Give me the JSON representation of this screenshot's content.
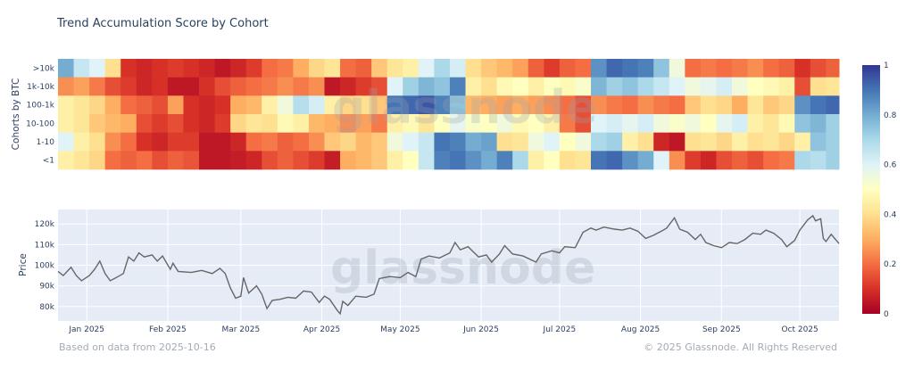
{
  "chart_data": [
    {
      "type": "heatmap",
      "title": "Trend Accumulation Score by Cohort",
      "ylabel": "Cohorts by BTC",
      "rows": [
        ">10k",
        "1k-10k",
        "100-1k",
        "10-100",
        "1-10",
        "<1"
      ],
      "x_range": [
        "2024-12-21",
        "2025-10-16"
      ],
      "bin_days": 6,
      "x": [
        "2024-12-21",
        "2024-12-27",
        "2025-01-02",
        "2025-01-08",
        "2025-01-14",
        "2025-01-20",
        "2025-01-26",
        "2025-02-01",
        "2025-02-07",
        "2025-02-13",
        "2025-02-19",
        "2025-02-25",
        "2025-03-03",
        "2025-03-09",
        "2025-03-15",
        "2025-03-21",
        "2025-03-27",
        "2025-04-02",
        "2025-04-08",
        "2025-04-14",
        "2025-04-20",
        "2025-04-26",
        "2025-05-02",
        "2025-05-08",
        "2025-05-14",
        "2025-05-20",
        "2025-05-26",
        "2025-06-01",
        "2025-06-07",
        "2025-06-13",
        "2025-06-19",
        "2025-06-25",
        "2025-07-01",
        "2025-07-07",
        "2025-07-13",
        "2025-07-19",
        "2025-07-25",
        "2025-07-31",
        "2025-08-06",
        "2025-08-12",
        "2025-08-18",
        "2025-08-24",
        "2025-08-30",
        "2025-09-05",
        "2025-09-11",
        "2025-09-17",
        "2025-09-23",
        "2025-09-29",
        "2025-10-05",
        "2025-10-11"
      ],
      "values": [
        [
          0.8,
          0.65,
          0.6,
          0.4,
          0.1,
          0.08,
          0.1,
          0.12,
          0.1,
          0.08,
          0.05,
          0.08,
          0.12,
          0.2,
          0.22,
          0.3,
          0.38,
          0.42,
          0.2,
          0.18,
          0.35,
          0.42,
          0.45,
          0.6,
          0.7,
          0.62,
          0.4,
          0.35,
          0.32,
          0.28,
          0.18,
          0.12,
          0.18,
          0.2,
          0.85,
          0.92,
          0.9,
          0.88,
          0.75,
          0.55,
          0.2,
          0.22,
          0.2,
          0.22,
          0.25,
          0.2,
          0.18,
          0.1,
          0.15,
          0.18
        ],
        [
          0.25,
          0.28,
          0.22,
          0.15,
          0.12,
          0.08,
          0.1,
          0.05,
          0.05,
          0.1,
          0.15,
          0.18,
          0.2,
          0.22,
          0.25,
          0.22,
          0.25,
          0.05,
          0.08,
          0.12,
          0.15,
          0.6,
          0.72,
          0.78,
          0.75,
          0.88,
          0.45,
          0.4,
          0.48,
          0.5,
          0.45,
          0.5,
          0.48,
          0.52,
          0.78,
          0.72,
          0.75,
          0.7,
          0.65,
          0.6,
          0.55,
          0.58,
          0.62,
          0.55,
          0.5,
          0.48,
          0.45,
          0.15,
          0.4,
          0.42
        ],
        [
          0.45,
          0.42,
          0.38,
          0.3,
          0.2,
          0.18,
          0.15,
          0.28,
          0.1,
          0.08,
          0.1,
          0.3,
          0.32,
          0.45,
          0.55,
          0.68,
          0.62,
          0.45,
          0.38,
          0.4,
          0.35,
          0.9,
          0.92,
          0.95,
          0.88,
          0.75,
          0.32,
          0.3,
          0.28,
          0.3,
          0.28,
          0.25,
          0.2,
          0.15,
          0.25,
          0.22,
          0.2,
          0.25,
          0.22,
          0.2,
          0.35,
          0.4,
          0.38,
          0.3,
          0.42,
          0.35,
          0.38,
          0.85,
          0.9,
          0.92
        ],
        [
          0.45,
          0.42,
          0.35,
          0.32,
          0.3,
          0.15,
          0.12,
          0.15,
          0.1,
          0.08,
          0.12,
          0.38,
          0.42,
          0.4,
          0.48,
          0.45,
          0.32,
          0.3,
          0.25,
          0.28,
          0.22,
          0.45,
          0.48,
          0.42,
          0.5,
          0.58,
          0.52,
          0.5,
          0.55,
          0.48,
          0.5,
          0.45,
          0.22,
          0.15,
          0.6,
          0.62,
          0.58,
          0.62,
          0.55,
          0.52,
          0.55,
          0.5,
          0.58,
          0.62,
          0.45,
          0.42,
          0.48,
          0.75,
          0.78,
          0.72
        ],
        [
          0.6,
          0.45,
          0.4,
          0.25,
          0.2,
          0.1,
          0.08,
          0.12,
          0.12,
          0.05,
          0.05,
          0.08,
          0.2,
          0.22,
          0.18,
          0.2,
          0.25,
          0.35,
          0.38,
          0.32,
          0.35,
          0.55,
          0.6,
          0.65,
          0.9,
          0.88,
          0.8,
          0.82,
          0.4,
          0.42,
          0.55,
          0.6,
          0.5,
          0.55,
          0.7,
          0.72,
          0.45,
          0.4,
          0.08,
          0.05,
          0.4,
          0.42,
          0.38,
          0.45,
          0.4,
          0.42,
          0.38,
          0.45,
          0.75,
          0.72
        ],
        [
          0.45,
          0.42,
          0.38,
          0.2,
          0.18,
          0.2,
          0.15,
          0.18,
          0.16,
          0.05,
          0.05,
          0.06,
          0.08,
          0.15,
          0.18,
          0.15,
          0.12,
          0.06,
          0.3,
          0.32,
          0.35,
          0.45,
          0.5,
          0.65,
          0.88,
          0.9,
          0.85,
          0.8,
          0.88,
          0.7,
          0.45,
          0.5,
          0.4,
          0.42,
          0.9,
          0.92,
          0.85,
          0.8,
          0.6,
          0.25,
          0.12,
          0.08,
          0.15,
          0.18,
          0.15,
          0.2,
          0.22,
          0.7,
          0.68,
          0.72
        ]
      ],
      "colorscale": [
        "#a50026",
        "#d73027",
        "#f46d43",
        "#fdae61",
        "#fee090",
        "#ffffbf",
        "#e0f3f8",
        "#abd9e9",
        "#74add1",
        "#4575b4",
        "#313695"
      ],
      "zlim": [
        0,
        1
      ],
      "colorbar_ticks": [
        "0",
        "0.2",
        "0.4",
        "0.6",
        "0.8",
        "1"
      ]
    },
    {
      "type": "line",
      "ylabel": "Price",
      "ylim": [
        73000,
        127000
      ],
      "y_ticks": [
        {
          "v": 80000,
          "label": "80k"
        },
        {
          "v": 90000,
          "label": "90k"
        },
        {
          "v": 100000,
          "label": "100k"
        },
        {
          "v": 110000,
          "label": "110k"
        },
        {
          "v": 120000,
          "label": "120k"
        }
      ],
      "x_ticks": [
        {
          "date": "2025-01-01",
          "label": "Jan 2025"
        },
        {
          "date": "2025-02-01",
          "label": "Feb 2025"
        },
        {
          "date": "2025-03-01",
          "label": "Mar 2025"
        },
        {
          "date": "2025-04-01",
          "label": "Apr 2025"
        },
        {
          "date": "2025-05-01",
          "label": "May 2025"
        },
        {
          "date": "2025-06-01",
          "label": "Jun 2025"
        },
        {
          "date": "2025-07-01",
          "label": "Jul 2025"
        },
        {
          "date": "2025-08-01",
          "label": "Aug 2025"
        },
        {
          "date": "2025-09-01",
          "label": "Sep 2025"
        },
        {
          "date": "2025-10-01",
          "label": "Oct 2025"
        }
      ],
      "grid": true,
      "line_color": "#666666",
      "points": [
        [
          "2024-12-21",
          97000
        ],
        [
          "2024-12-23",
          95000
        ],
        [
          "2024-12-26",
          99000
        ],
        [
          "2024-12-28",
          95000
        ],
        [
          "2024-12-30",
          92500
        ],
        [
          "2025-01-02",
          95000
        ],
        [
          "2025-01-04",
          98000
        ],
        [
          "2025-01-06",
          102000
        ],
        [
          "2025-01-08",
          96000
        ],
        [
          "2025-01-10",
          92500
        ],
        [
          "2025-01-13",
          94500
        ],
        [
          "2025-01-15",
          96000
        ],
        [
          "2025-01-17",
          104000
        ],
        [
          "2025-01-19",
          102000
        ],
        [
          "2025-01-21",
          106000
        ],
        [
          "2025-01-23",
          104000
        ],
        [
          "2025-01-26",
          105000
        ],
        [
          "2025-01-28",
          102000
        ],
        [
          "2025-01-30",
          104500
        ],
        [
          "2025-02-02",
          98000
        ],
        [
          "2025-02-03",
          101000
        ],
        [
          "2025-02-05",
          97000
        ],
        [
          "2025-02-10",
          96500
        ],
        [
          "2025-02-14",
          97500
        ],
        [
          "2025-02-18",
          96000
        ],
        [
          "2025-02-21",
          98500
        ],
        [
          "2025-02-23",
          96000
        ],
        [
          "2025-02-25",
          89000
        ],
        [
          "2025-02-27",
          84000
        ],
        [
          "2025-03-01",
          85000
        ],
        [
          "2025-03-02",
          94000
        ],
        [
          "2025-03-04",
          86500
        ],
        [
          "2025-03-07",
          90000
        ],
        [
          "2025-03-09",
          86000
        ],
        [
          "2025-03-11",
          79000
        ],
        [
          "2025-03-13",
          83000
        ],
        [
          "2025-03-16",
          83500
        ],
        [
          "2025-03-19",
          84500
        ],
        [
          "2025-03-22",
          84000
        ],
        [
          "2025-03-25",
          87500
        ],
        [
          "2025-03-28",
          87000
        ],
        [
          "2025-03-31",
          82000
        ],
        [
          "2025-04-02",
          85000
        ],
        [
          "2025-04-04",
          83500
        ],
        [
          "2025-04-07",
          78000
        ],
        [
          "2025-04-08",
          76500
        ],
        [
          "2025-04-09",
          82500
        ],
        [
          "2025-04-11",
          80500
        ],
        [
          "2025-04-14",
          85000
        ],
        [
          "2025-04-18",
          84500
        ],
        [
          "2025-04-21",
          86000
        ],
        [
          "2025-04-23",
          93500
        ],
        [
          "2025-04-27",
          94500
        ],
        [
          "2025-05-01",
          94000
        ],
        [
          "2025-05-04",
          96500
        ],
        [
          "2025-05-07",
          94500
        ],
        [
          "2025-05-09",
          103000
        ],
        [
          "2025-05-12",
          104500
        ],
        [
          "2025-05-16",
          103500
        ],
        [
          "2025-05-20",
          106000
        ],
        [
          "2025-05-22",
          111000
        ],
        [
          "2025-05-24",
          107500
        ],
        [
          "2025-05-27",
          109000
        ],
        [
          "2025-05-31",
          104000
        ],
        [
          "2025-06-03",
          105000
        ],
        [
          "2025-06-05",
          101500
        ],
        [
          "2025-06-08",
          105500
        ],
        [
          "2025-06-10",
          109500
        ],
        [
          "2025-06-13",
          105500
        ],
        [
          "2025-06-17",
          104500
        ],
        [
          "2025-06-22",
          101500
        ],
        [
          "2025-06-24",
          105500
        ],
        [
          "2025-06-28",
          107000
        ],
        [
          "2025-07-01",
          106000
        ],
        [
          "2025-07-03",
          109000
        ],
        [
          "2025-07-07",
          108500
        ],
        [
          "2025-07-10",
          116000
        ],
        [
          "2025-07-13",
          118000
        ],
        [
          "2025-07-15",
          117000
        ],
        [
          "2025-07-18",
          118500
        ],
        [
          "2025-07-22",
          117500
        ],
        [
          "2025-07-25",
          117000
        ],
        [
          "2025-07-28",
          118000
        ],
        [
          "2025-07-31",
          116500
        ],
        [
          "2025-08-03",
          113000
        ],
        [
          "2025-08-06",
          114500
        ],
        [
          "2025-08-09",
          116500
        ],
        [
          "2025-08-11",
          118000
        ],
        [
          "2025-08-14",
          123000
        ],
        [
          "2025-08-16",
          117500
        ],
        [
          "2025-08-19",
          116000
        ],
        [
          "2025-08-22",
          112500
        ],
        [
          "2025-08-24",
          115000
        ],
        [
          "2025-08-26",
          111000
        ],
        [
          "2025-08-29",
          109500
        ],
        [
          "2025-09-01",
          108500
        ],
        [
          "2025-09-04",
          111000
        ],
        [
          "2025-09-07",
          110500
        ],
        [
          "2025-09-10",
          112500
        ],
        [
          "2025-09-13",
          115500
        ],
        [
          "2025-09-16",
          115000
        ],
        [
          "2025-09-18",
          117000
        ],
        [
          "2025-09-21",
          115500
        ],
        [
          "2025-09-24",
          112500
        ],
        [
          "2025-09-26",
          109000
        ],
        [
          "2025-09-29",
          112000
        ],
        [
          "2025-10-01",
          117000
        ],
        [
          "2025-10-04",
          122000
        ],
        [
          "2025-10-06",
          124000
        ],
        [
          "2025-10-07",
          121500
        ],
        [
          "2025-10-09",
          122500
        ],
        [
          "2025-10-10",
          113000
        ],
        [
          "2025-10-11",
          111500
        ],
        [
          "2025-10-13",
          115000
        ],
        [
          "2025-10-16",
          110500
        ]
      ]
    }
  ],
  "watermark": "glassnode",
  "footer": {
    "left": "Based on data from 2025-10-16",
    "right": "© 2025 Glassnode. All Rights Reserved"
  }
}
